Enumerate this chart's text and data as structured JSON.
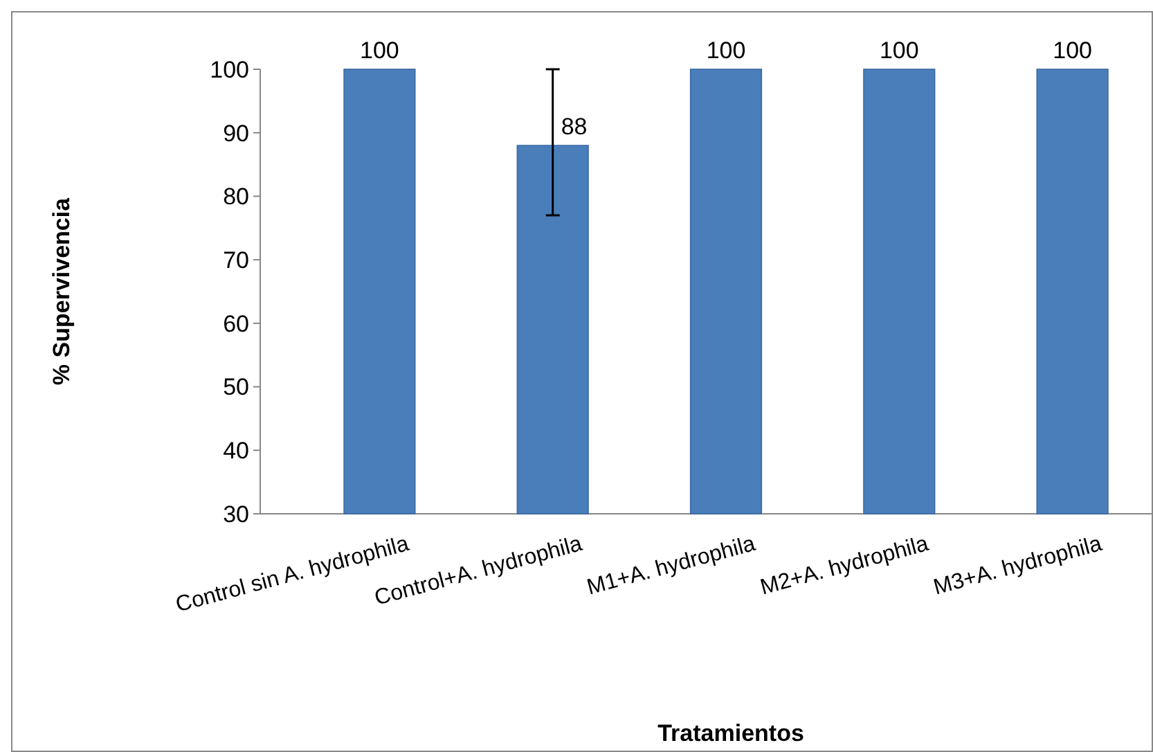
{
  "chart_data": {
    "type": "bar",
    "xlabel": "Tratamientos",
    "ylabel": "% Supervivencia",
    "categories": [
      "Control sin A. hydrophila",
      "Control+A. hydrophila",
      "M1+A. hydrophila",
      "M2+A. hydrophila",
      "M3+A. hydrophila"
    ],
    "values": [
      100,
      88,
      100,
      100,
      100
    ],
    "errors": [
      null,
      [
        77,
        100
      ],
      null,
      null,
      null
    ],
    "color": "#4a7ebb",
    "ylim": [
      30,
      100
    ],
    "yticks": [
      30,
      40,
      50,
      60,
      70,
      80,
      90,
      100
    ],
    "data_labels": true
  }
}
